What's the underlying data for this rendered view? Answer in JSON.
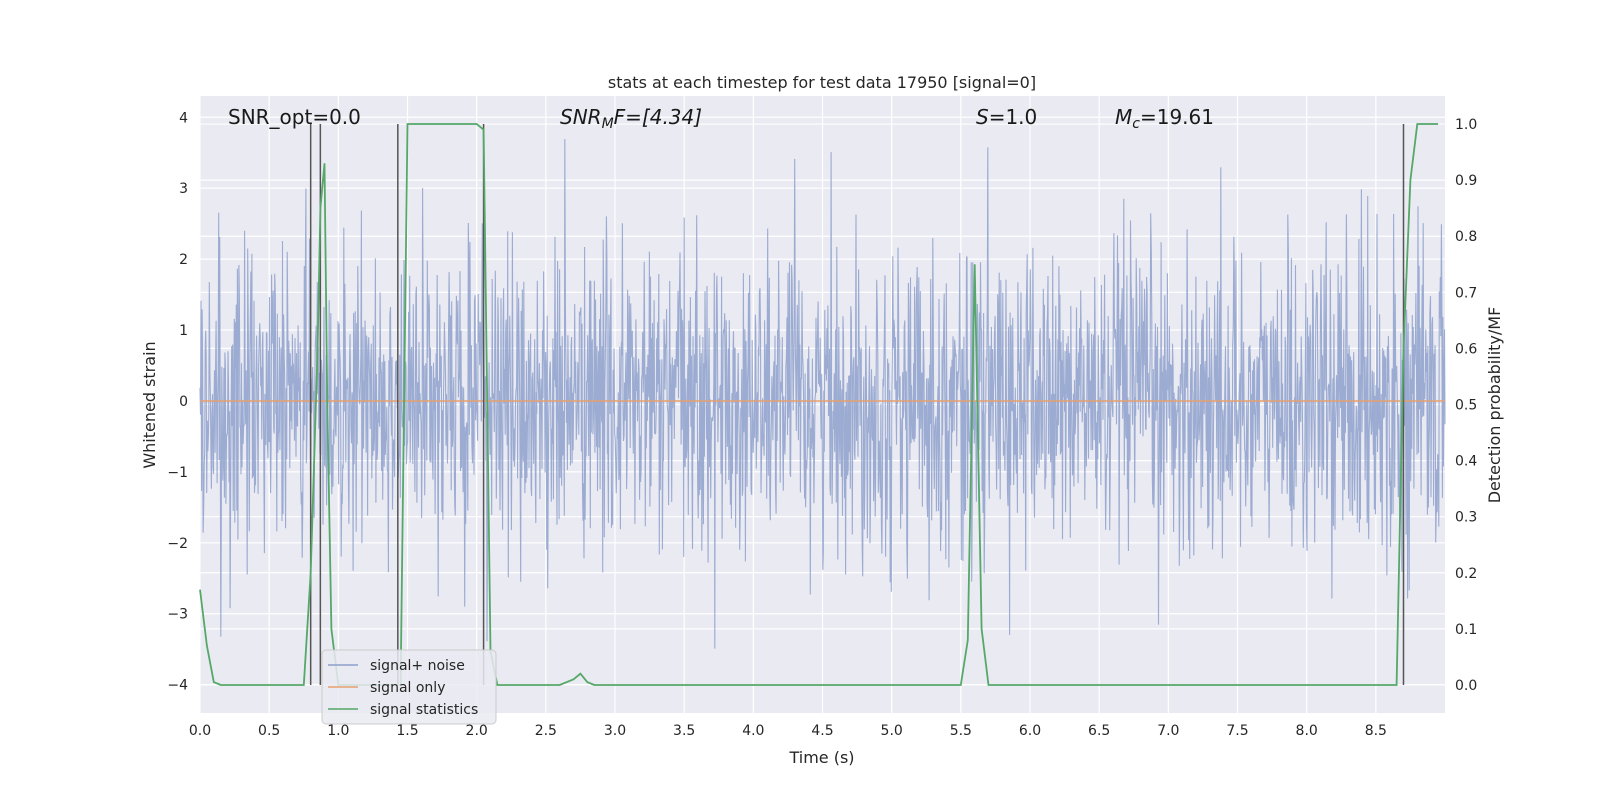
{
  "chart_data": {
    "type": "line",
    "title": "stats at each timestep for test data 17950 [signal=0]",
    "xlabel": "Time (s)",
    "ylabel": "Whitened strain",
    "y2label": "Detection probability/MF",
    "xlim": [
      0.0,
      9.0
    ],
    "ylim": [
      -4.4,
      4.3
    ],
    "y2lim": [
      -0.05,
      1.05
    ],
    "x_ticks": [
      "0.0",
      "0.5",
      "1.0",
      "1.5",
      "2.0",
      "2.5",
      "3.0",
      "3.5",
      "4.0",
      "4.5",
      "5.0",
      "5.5",
      "6.0",
      "6.5",
      "7.0",
      "7.5",
      "8.0",
      "8.5"
    ],
    "y_ticks": [
      "−4",
      "−3",
      "−2",
      "−1",
      "0",
      "1",
      "2",
      "3",
      "4"
    ],
    "y2_ticks": [
      "0.0",
      "0.1",
      "0.2",
      "0.3",
      "0.4",
      "0.5",
      "0.6",
      "0.7",
      "0.8",
      "0.9",
      "1.0"
    ],
    "grid": true,
    "legend_position": "lower-left",
    "annotations": {
      "snr_opt": "SNR_opt=0.0",
      "snr_mf_base": "SNR",
      "snr_mf_sub": "M",
      "snr_mf_rest": "F=[4.34]",
      "s_label": "S",
      "s_value": "=1.0",
      "mc_base": "M",
      "mc_sub": "c",
      "mc_value": "=19.61"
    },
    "series": [
      {
        "name": "signal+ noise",
        "color": "#8da0cb",
        "description_values": "whitened strain noise, envelope approx ±1.5 with spikes to ±4",
        "x_range": [
          0.0,
          9.0
        ],
        "amplitude_std": 1.0
      },
      {
        "name": "signal only",
        "color": "#e5a070",
        "x": [
          0.0,
          9.0
        ],
        "y": [
          0.0,
          0.0
        ]
      },
      {
        "name": "signal statistics",
        "color": "#55a868",
        "x": [
          0.0,
          0.05,
          0.1,
          0.15,
          0.2,
          0.7,
          0.75,
          0.8,
          0.85,
          0.87,
          0.9,
          0.92,
          0.95,
          1.0,
          1.05,
          1.4,
          1.45,
          1.5,
          1.55,
          2.0,
          2.05,
          2.1,
          2.15,
          2.2,
          2.6,
          2.7,
          2.75,
          2.8,
          2.85,
          5.5,
          5.55,
          5.6,
          5.65,
          5.7,
          5.75,
          8.6,
          8.65,
          8.7,
          8.75,
          8.8,
          8.85,
          8.95
        ],
        "y": [
          0.17,
          0.07,
          0.005,
          0.0,
          0.0,
          0.0,
          0.0,
          0.2,
          0.6,
          0.85,
          0.93,
          0.5,
          0.1,
          0.0,
          0.0,
          0.0,
          0.0,
          1.0,
          1.0,
          1.0,
          0.99,
          0.06,
          0.0,
          0.0,
          0.0,
          0.01,
          0.02,
          0.005,
          0.0,
          0.0,
          0.08,
          0.75,
          0.1,
          0.0,
          0.0,
          0.0,
          0.0,
          0.6,
          0.9,
          1.0,
          1.0,
          1.0
        ]
      }
    ],
    "vertical_lines_x": [
      0.8,
      0.87,
      1.43,
      2.05,
      8.7
    ],
    "vertical_lines_ymax_right": [
      1.0,
      1.0,
      1.0,
      1.0,
      1.0
    ]
  }
}
